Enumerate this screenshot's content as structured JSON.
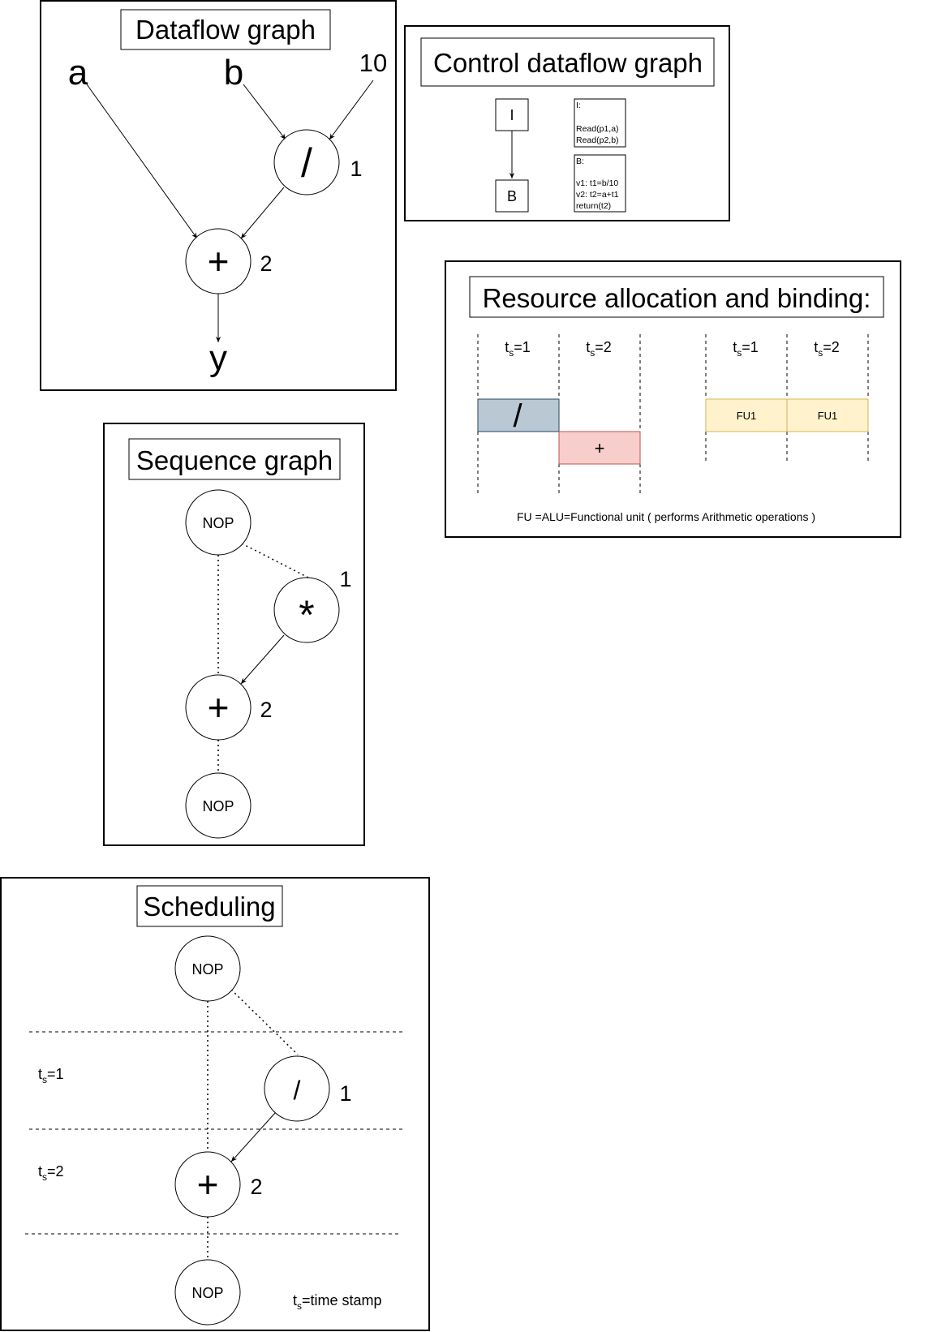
{
  "dataflow": {
    "title": "Dataflow graph",
    "input_a": "a",
    "input_b": "b",
    "input_const": "10",
    "div_op": "/",
    "div_index": "1",
    "add_op": "+",
    "add_index": "2",
    "output": "y"
  },
  "cdfg": {
    "title": "Control dataflow graph",
    "node_i": "I",
    "node_b": "B",
    "block_i_lines": [
      "I:",
      "",
      "Read(p1,a)",
      "Read(p2,b)"
    ],
    "block_b_lines": [
      "B:",
      "",
      "v1: t1=b/10",
      "v2: t2=a+t1",
      "return(t2)"
    ]
  },
  "resource": {
    "title": "Resource allocation and binding:",
    "ts_base": "t",
    "ts_sub": "s",
    "ts1_suffix": "=1",
    "ts2_suffix": "=2",
    "div_op": "/",
    "add_op": "+",
    "fu1_a": "FU1",
    "fu1_b": "FU1",
    "footnote": "FU =ALU=Functional unit ( performs Arithmetic operations )",
    "colors": {
      "div_fill": "#bac8d3",
      "div_stroke": "#23445d",
      "add_fill": "#f8cecc",
      "add_stroke": "#b85450",
      "fu_fill": "#fff2cc",
      "fu_stroke": "#d6b656"
    }
  },
  "sequence": {
    "title": "Sequence graph",
    "nop_top": "NOP",
    "mul_op": "*",
    "mul_index": "1",
    "add_op": "+",
    "add_index": "2",
    "nop_bottom": "NOP"
  },
  "scheduling": {
    "title": "Scheduling",
    "nop_top": "NOP",
    "ts_base": "t",
    "ts_sub": "s",
    "ts1_suffix": "=1",
    "ts2_suffix": "=2",
    "div_op": "/",
    "div_index": "1",
    "add_op": "+",
    "add_index": "2",
    "nop_bottom": "NOP",
    "legend_suffix": "=time stamp"
  }
}
